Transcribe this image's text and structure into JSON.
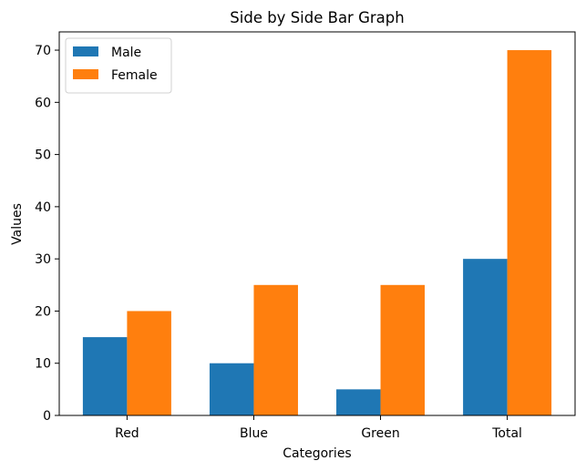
{
  "chart_data": {
    "type": "bar",
    "title": "Side by Side Bar Graph",
    "xlabel": "Categories",
    "ylabel": "Values",
    "categories": [
      "Red",
      "Blue",
      "Green",
      "Total"
    ],
    "series": [
      {
        "name": "Male",
        "color": "#1f77b4",
        "values": [
          15,
          10,
          5,
          30
        ]
      },
      {
        "name": "Female",
        "color": "#ff7f0e",
        "values": [
          20,
          25,
          25,
          70
        ]
      }
    ],
    "ylim": [
      0,
      73.5
    ],
    "yticks": [
      0,
      10,
      20,
      30,
      40,
      50,
      60,
      70
    ],
    "grid": false,
    "legend_position": "top-left"
  }
}
